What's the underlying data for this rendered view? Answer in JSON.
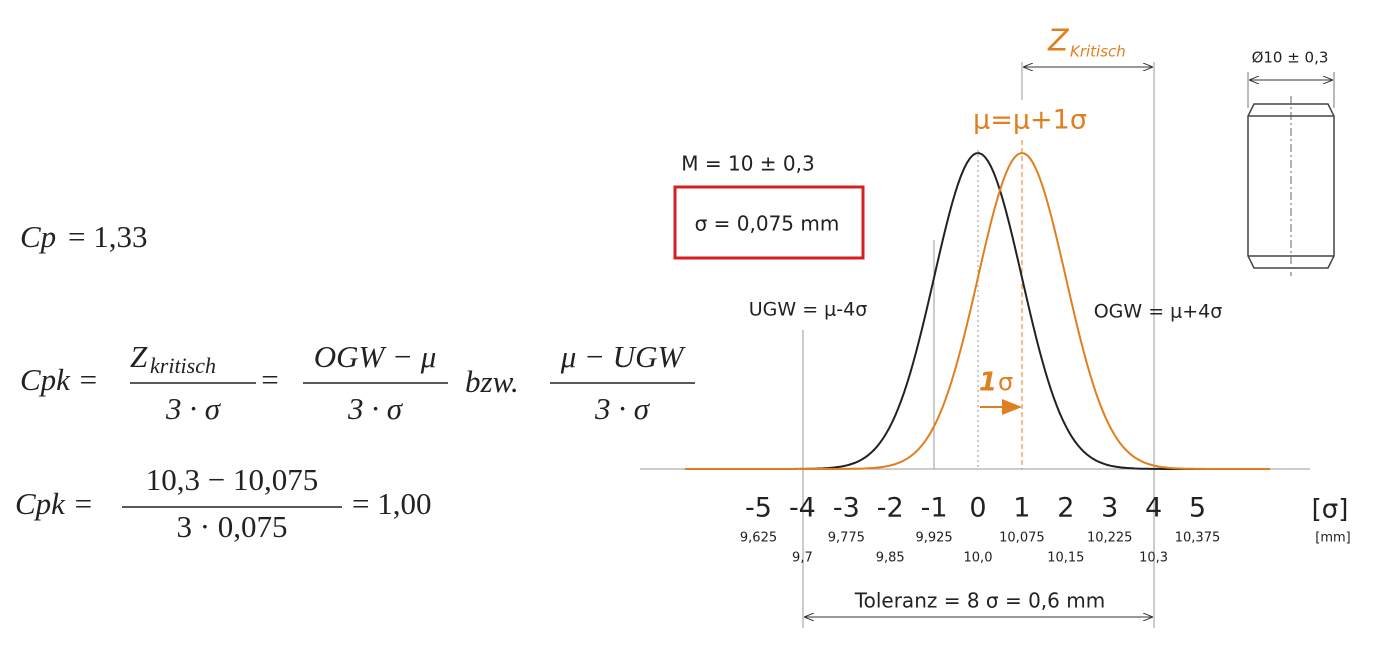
{
  "formulas": {
    "cp": {
      "symbol": "Cp",
      "rest": "= 1,33"
    },
    "cpk_general": {
      "symbol": "Cpk =",
      "z": "Z",
      "z_sub": "kritisch",
      "den1": "3 · σ",
      "eq": "=",
      "num2": "OGW − μ",
      "den2": "3 · σ",
      "or": "bzw.",
      "num3": "μ − UGW",
      "den3": "3 · σ"
    },
    "cpk_value": {
      "symbol": "Cpk =",
      "num": "10,3 − 10,075",
      "den": "3 · 0,075",
      "result": "= 1,00"
    }
  },
  "diagram": {
    "z_label": "Z",
    "z_sub": "Kritisch",
    "shift_label": "μ=μ+1σ",
    "nominal": "M = 10 ± 0,3",
    "sigma": "σ = 0,075 mm",
    "ugw": "UGW = μ-4σ",
    "ogw": "OGW = μ+4σ",
    "shift_arrow": {
      "number": "1",
      "unit": "σ"
    },
    "sigma_ticks": [
      "-5",
      "-4",
      "-3",
      "-2",
      "-1",
      "0",
      "1",
      "2",
      "3",
      "4",
      "5"
    ],
    "sigma_unit": "[σ]",
    "mm_ticks_upper": [
      "9,625",
      "9,775",
      "9,925",
      "10,075",
      "10,225",
      "10,375"
    ],
    "mm_ticks_lower": [
      "9,7",
      "9,85",
      "10,0",
      "10,15",
      "10,3"
    ],
    "mm_unit": "[mm]",
    "tolerance": "Toleranz = 8 σ = 0,6 mm",
    "part_label": "Ø10 ± 0,3"
  }
}
